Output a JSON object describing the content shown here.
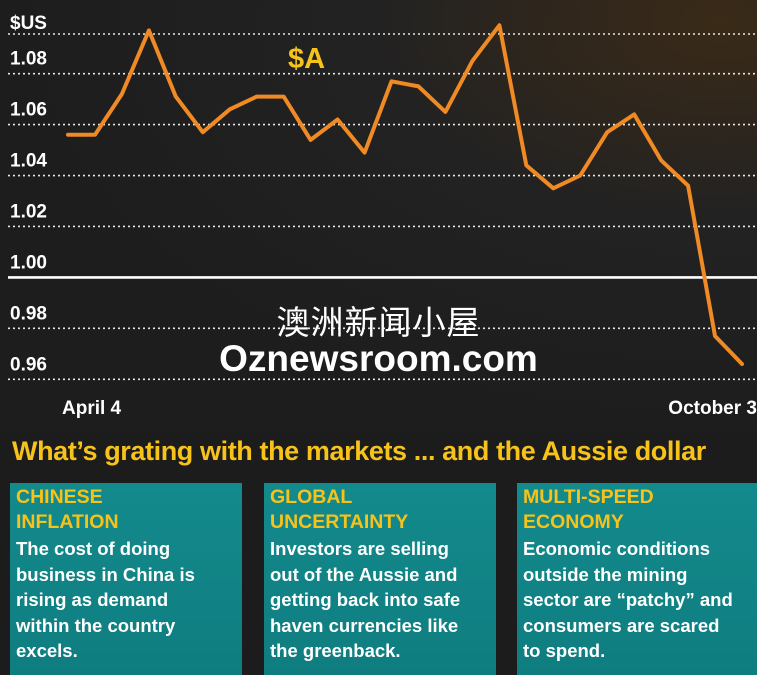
{
  "chart_data": {
    "type": "line",
    "ylabel": "$US",
    "series_label": "$A",
    "ylim": [
      0.955,
      1.105
    ],
    "yticks": [
      "1.08",
      "1.06",
      "1.04",
      "1.02",
      "1.00",
      "0.98",
      "0.96"
    ],
    "ytick_values": [
      1.08,
      1.06,
      1.04,
      1.02,
      1.0,
      0.98,
      0.96
    ],
    "x_start_label": "April 4",
    "x_end_label": "October 3",
    "grid": "dotted horizontal",
    "reference_line": 1.0,
    "series": [
      {
        "color": "#f08a24",
        "values": [
          1.056,
          1.056,
          1.072,
          1.097,
          1.071,
          1.057,
          1.066,
          1.071,
          1.071,
          1.054,
          1.062,
          1.049,
          1.077,
          1.075,
          1.065,
          1.085,
          1.099,
          1.044,
          1.035,
          1.04,
          1.057,
          1.064,
          1.046,
          1.036,
          0.977,
          0.966
        ]
      }
    ]
  },
  "watermark": {
    "cn": "澳洲新闻小屋",
    "en": "Oznewsroom.com"
  },
  "headline": "What’s grating with the markets ... and the Aussie dollar",
  "panels": [
    {
      "title_line1": "CHINESE",
      "title_line2": "INFLATION",
      "body": [
        "The cost of doing",
        "business in China is",
        "rising as demand",
        "within the country",
        "excels."
      ]
    },
    {
      "title_line1": "GLOBAL",
      "title_line2": "UNCERTAINTY",
      "body": [
        "Investors are selling",
        "out of the Aussie and",
        "getting back into safe",
        "haven currencies like",
        "the greenback."
      ]
    },
    {
      "title_line1": "MULTI-SPEED",
      "title_line2": "ECONOMY",
      "body": [
        "Economic conditions",
        "outside the mining",
        "sector are “patchy” and",
        "consumers are scared",
        "to spend."
      ]
    }
  ]
}
